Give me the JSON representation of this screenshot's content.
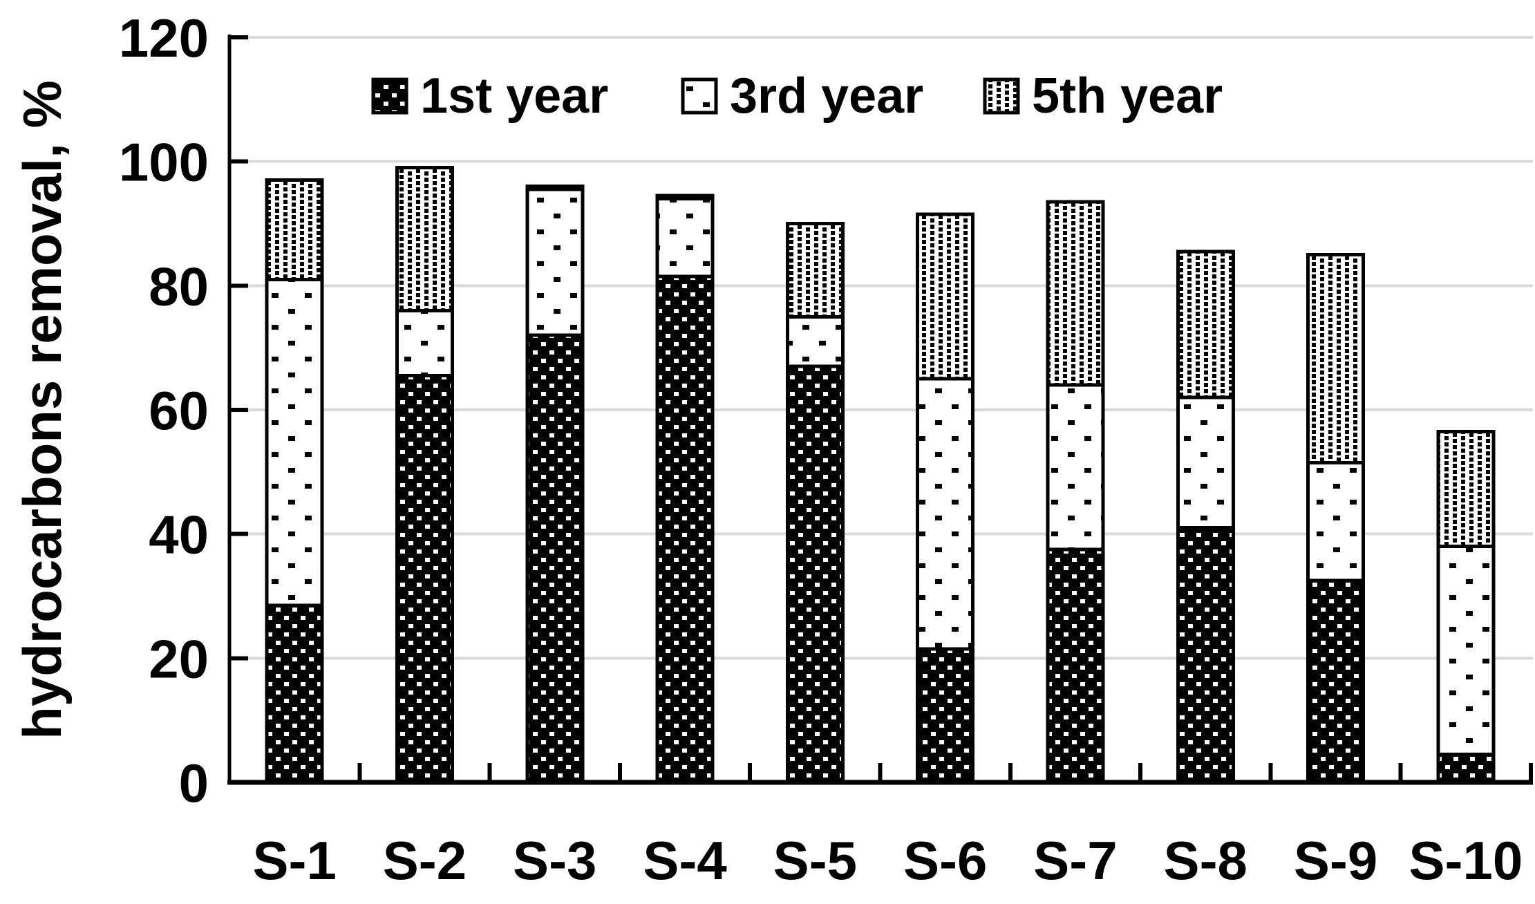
{
  "chart_data": {
    "type": "bar",
    "stacked": true,
    "title": "",
    "xlabel": "",
    "ylabel": "hydrocarbons removal, %",
    "ylim": [
      0,
      120
    ],
    "ytick_step": 20,
    "yticks": [
      "0",
      "20",
      "40",
      "60",
      "80",
      "100",
      "120"
    ],
    "grid": true,
    "legend_position": "top-center-inside",
    "categories": [
      "S-1",
      "S-2",
      "S-3",
      "S-4",
      "S-5",
      "S-6",
      "S-7",
      "S-8",
      "S-9",
      "S-10"
    ],
    "series": [
      {
        "name": "1st year",
        "pattern": "black-with-white-dots",
        "values": [
          28.5,
          65.5,
          72,
          81.5,
          67,
          21.5,
          37.5,
          41,
          32.5,
          4.5
        ]
      },
      {
        "name": "3rd year",
        "pattern": "white-with-sparse-black-dots",
        "values": [
          52.5,
          10.5,
          23.5,
          12.5,
          8,
          43.5,
          26.5,
          21,
          19,
          33.5
        ]
      },
      {
        "name": "5th year",
        "pattern": "white-with-dense-black-dots",
        "values": [
          16,
          23,
          0.5,
          0.5,
          15,
          26.5,
          29.5,
          23.5,
          33.5,
          18.5
        ]
      }
    ],
    "colors": {
      "ink": "#000000",
      "gridline": "#d9d9d9",
      "background": "#ffffff"
    }
  }
}
